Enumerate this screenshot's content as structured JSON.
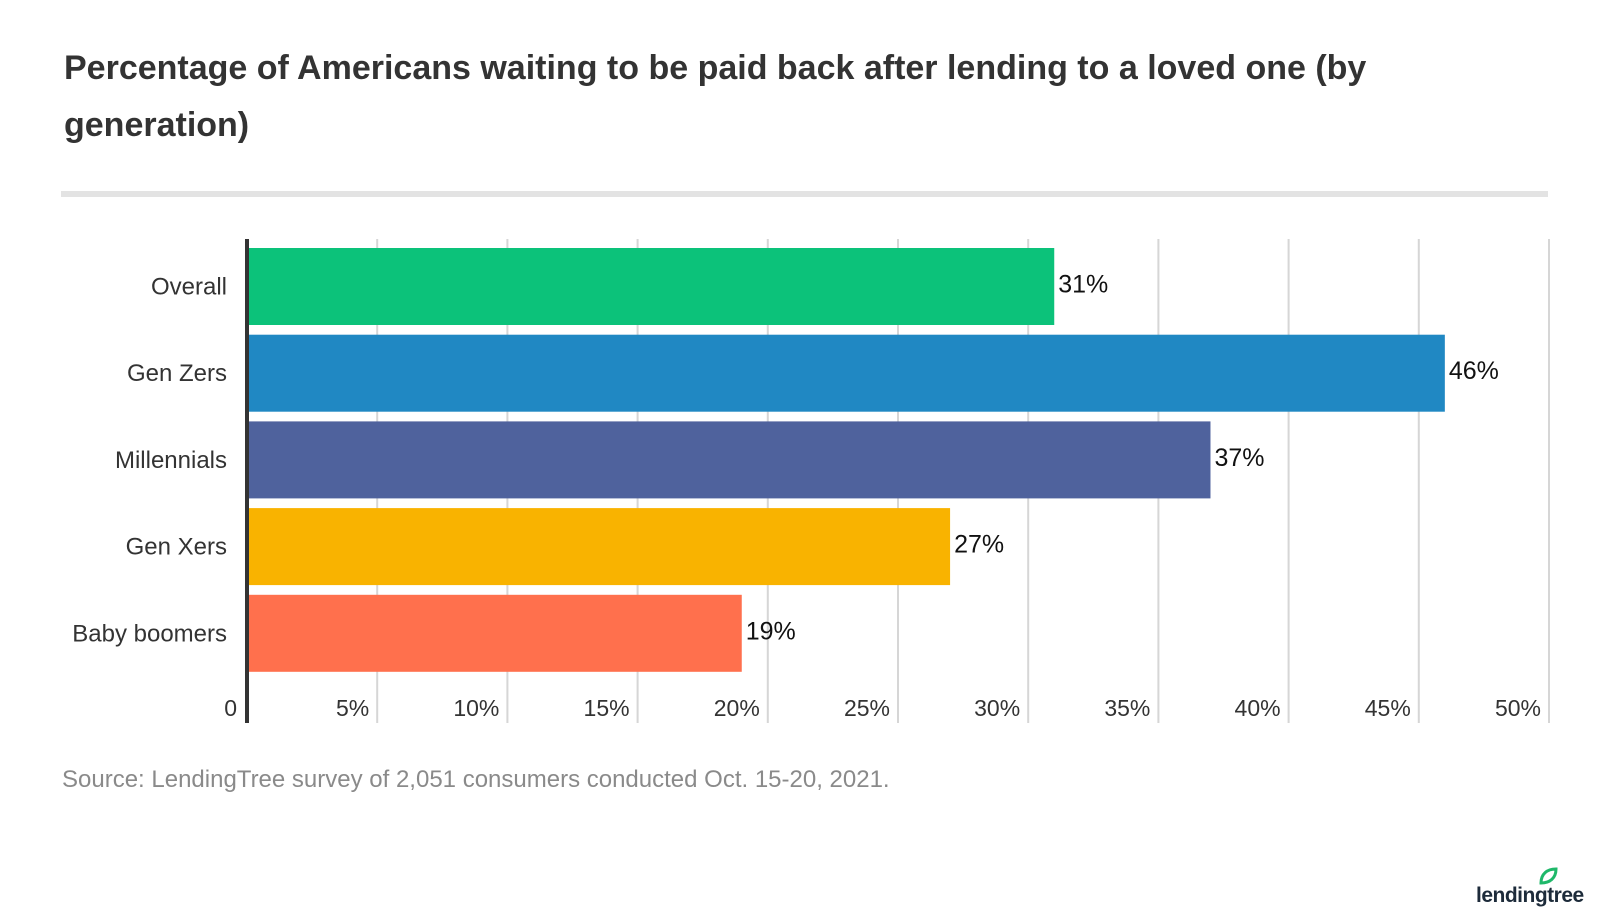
{
  "chart_data": {
    "type": "bar",
    "orientation": "horizontal",
    "title": "Percentage of Americans waiting to be paid back after lending to a loved one (by generation)",
    "categories": [
      "Overall",
      "Gen Zers",
      "Millennials",
      "Gen Xers",
      "Baby boomers"
    ],
    "values": [
      31,
      46,
      37,
      27,
      19
    ],
    "data_labels": [
      "31%",
      "46%",
      "37%",
      "27%",
      "19%"
    ],
    "colors": [
      "#0cc27a",
      "#2088c3",
      "#4f629d",
      "#f9b300",
      "#ff704d"
    ],
    "xlim": [
      0,
      50
    ],
    "x_ticks": [
      0,
      5,
      10,
      15,
      20,
      25,
      30,
      35,
      40,
      45,
      50
    ],
    "x_tick_labels": [
      "0",
      "5%",
      "10%",
      "15%",
      "20%",
      "25%",
      "30%",
      "35%",
      "40%",
      "45%",
      "50%"
    ],
    "grid": "vertical",
    "xlabel": "",
    "ylabel": ""
  },
  "source": "Source: LendingTree survey of 2,051 consumers conducted Oct. 15-20, 2021.",
  "logo": {
    "text": "lendingtree",
    "color": "#16a34a"
  }
}
